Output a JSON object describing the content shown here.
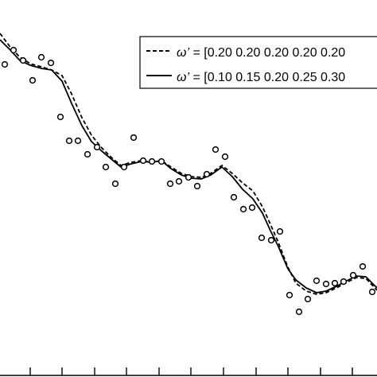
{
  "chart_data": {
    "type": "line",
    "title": "",
    "xlabel": "",
    "ylabel": "",
    "x_range": [
      0,
      474
    ],
    "y_range": [
      0,
      474
    ],
    "grid": false,
    "legend_placement": "top-right",
    "legend": [
      {
        "style": "dashed",
        "label_symbol": "ω’",
        "label_text": " = [0.20 0.20 0.20 0.20 0.20"
      },
      {
        "style": "solid",
        "label_symbol": "ω’",
        "label_text": " = [0.10 0.15 0.20 0.25 0.30"
      }
    ],
    "x_ticks": [
      38,
      78,
      119,
      159,
      200,
      240,
      281,
      322,
      362,
      403,
      443
    ],
    "series": [
      {
        "style": "solid",
        "values": [
          [
            0,
            50
          ],
          [
            12,
            62
          ],
          [
            25,
            76
          ],
          [
            38,
            82
          ],
          [
            52,
            86
          ],
          [
            65,
            88
          ],
          [
            78,
            102
          ],
          [
            90,
            130
          ],
          [
            103,
            158
          ],
          [
            115,
            178
          ],
          [
            128,
            190
          ],
          [
            140,
            200
          ],
          [
            152,
            210
          ],
          [
            165,
            206
          ],
          [
            178,
            203
          ],
          [
            190,
            204
          ],
          [
            203,
            202
          ],
          [
            215,
            212
          ],
          [
            228,
            220
          ],
          [
            240,
            224
          ],
          [
            253,
            225
          ],
          [
            265,
            220
          ],
          [
            279,
            210
          ],
          [
            292,
            222
          ],
          [
            305,
            238
          ],
          [
            318,
            250
          ],
          [
            330,
            268
          ],
          [
            340,
            290
          ],
          [
            350,
            310
          ],
          [
            362,
            338
          ],
          [
            372,
            352
          ],
          [
            385,
            362
          ],
          [
            398,
            368
          ],
          [
            410,
            366
          ],
          [
            423,
            360
          ],
          [
            436,
            353
          ],
          [
            448,
            347
          ],
          [
            460,
            348
          ],
          [
            474,
            362
          ]
        ]
      },
      {
        "style": "dashed",
        "values": [
          [
            0,
            42
          ],
          [
            12,
            58
          ],
          [
            25,
            72
          ],
          [
            38,
            80
          ],
          [
            52,
            84
          ],
          [
            65,
            88
          ],
          [
            78,
            95
          ],
          [
            90,
            118
          ],
          [
            103,
            148
          ],
          [
            115,
            170
          ],
          [
            128,
            186
          ],
          [
            140,
            198
          ],
          [
            152,
            208
          ],
          [
            165,
            204
          ],
          [
            178,
            202
          ],
          [
            190,
            204
          ],
          [
            203,
            202
          ],
          [
            215,
            210
          ],
          [
            228,
            218
          ],
          [
            240,
            222
          ],
          [
            253,
            223
          ],
          [
            265,
            218
          ],
          [
            279,
            208
          ],
          [
            292,
            218
          ],
          [
            305,
            230
          ],
          [
            318,
            240
          ],
          [
            330,
            260
          ],
          [
            340,
            282
          ],
          [
            350,
            305
          ],
          [
            362,
            336
          ],
          [
            372,
            356
          ],
          [
            385,
            366
          ],
          [
            398,
            370
          ],
          [
            410,
            368
          ],
          [
            423,
            362
          ],
          [
            436,
            355
          ],
          [
            448,
            349
          ],
          [
            460,
            350
          ],
          [
            474,
            365
          ]
        ]
      }
    ],
    "points": [
      [
        6,
        81
      ],
      [
        17,
        63
      ],
      [
        29,
        76
      ],
      [
        41,
        101
      ],
      [
        52,
        72
      ],
      [
        64,
        79
      ],
      [
        76,
        147
      ],
      [
        87,
        177
      ],
      [
        98,
        177
      ],
      [
        110,
        194
      ],
      [
        122,
        185
      ],
      [
        133,
        210
      ],
      [
        145,
        231
      ],
      [
        156,
        210
      ],
      [
        168,
        173
      ],
      [
        180,
        202
      ],
      [
        191,
        203
      ],
      [
        203,
        203
      ],
      [
        214,
        231
      ],
      [
        225,
        228
      ],
      [
        237,
        223
      ],
      [
        248,
        234
      ],
      [
        260,
        219
      ],
      [
        271,
        188
      ],
      [
        283,
        197
      ],
      [
        294,
        248
      ],
      [
        306,
        263
      ],
      [
        317,
        261
      ],
      [
        329,
        299
      ],
      [
        341,
        302
      ],
      [
        352,
        291
      ],
      [
        364,
        371
      ],
      [
        376,
        392
      ],
      [
        387,
        376
      ],
      [
        398,
        353
      ],
      [
        410,
        357
      ],
      [
        421,
        356
      ],
      [
        432,
        354
      ],
      [
        444,
        346
      ],
      [
        456,
        335
      ],
      [
        468,
        367
      ]
    ]
  }
}
